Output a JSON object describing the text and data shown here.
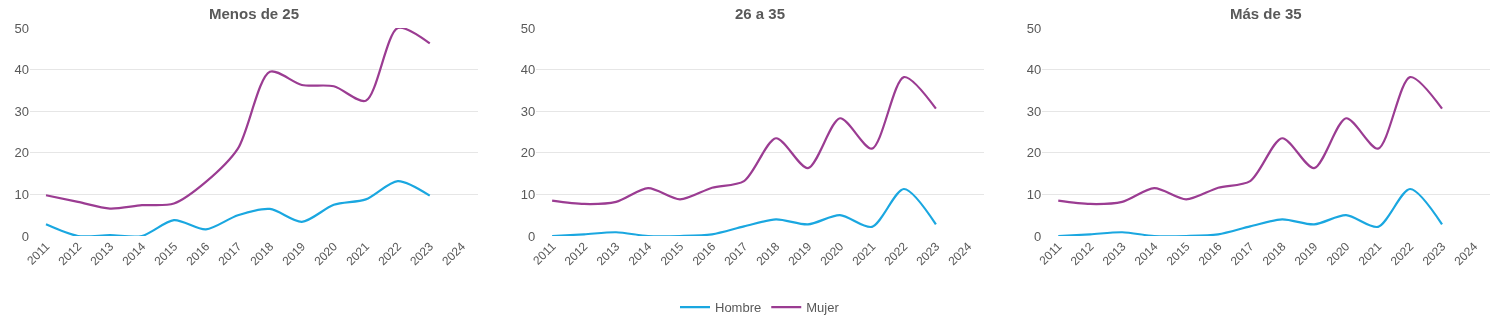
{
  "chart_data": [
    {
      "type": "line",
      "title": "Menos de 25",
      "categories": [
        "2011",
        "2012",
        "2013",
        "2014",
        "2015",
        "2016",
        "2017",
        "2018",
        "2019",
        "2020",
        "2021",
        "2022",
        "2023",
        "2024"
      ],
      "ylim": [
        0,
        50
      ],
      "yticks": [
        0,
        10,
        20,
        30,
        40,
        50
      ],
      "grid": "y",
      "legend": "bottom",
      "series": [
        {
          "name": "Hombre",
          "color": "#1aa7e0",
          "values": [
            2.8,
            0,
            0.2,
            0,
            3.8,
            1.6,
            5,
            6.5,
            3.4,
            7.5,
            8.8,
            13.2,
            9.7,
            null
          ]
        },
        {
          "name": "Mujer",
          "color": "#9b3c92",
          "values": [
            9.8,
            8.2,
            6.6,
            7.4,
            7.8,
            13,
            21,
            39.5,
            36.3,
            36,
            32.5,
            50,
            46.3,
            null
          ]
        }
      ]
    },
    {
      "type": "line",
      "title": "26 a 35",
      "categories": [
        "2011",
        "2012",
        "2013",
        "2014",
        "2015",
        "2016",
        "2017",
        "2018",
        "2019",
        "2020",
        "2021",
        "2022",
        "2023",
        "2024"
      ],
      "ylim": [
        0,
        50
      ],
      "yticks": [
        0,
        10,
        20,
        30,
        40,
        50
      ],
      "grid": "y",
      "series": [
        {
          "color": "#1aa7e0",
          "values": [
            0,
            0.4,
            0.9,
            0,
            0,
            0.4,
            2.3,
            4,
            2.8,
            5,
            2.2,
            11.3,
            2.8,
            null
          ]
        },
        {
          "color": "#9b3c92",
          "values": [
            8.5,
            7.7,
            8.2,
            11.5,
            8.8,
            11.6,
            13.2,
            23.5,
            16.3,
            28.3,
            21,
            38.2,
            30.6,
            null
          ]
        }
      ]
    },
    {
      "type": "line",
      "title": "Más de 35",
      "categories": [
        "2011",
        "2012",
        "2013",
        "2014",
        "2015",
        "2016",
        "2017",
        "2018",
        "2019",
        "2020",
        "2021",
        "2022",
        "2023",
        "2024"
      ],
      "ylim": [
        0,
        50
      ],
      "yticks": [
        0,
        10,
        20,
        30,
        40,
        50
      ],
      "grid": "y",
      "series": [
        {
          "color": "#1aa7e0",
          "values": [
            0,
            0.4,
            0.9,
            0,
            0,
            0.4,
            2.3,
            4,
            2.8,
            5,
            2.2,
            11.3,
            2.8,
            null
          ]
        },
        {
          "color": "#9b3c92",
          "values": [
            8.5,
            7.7,
            8.2,
            11.5,
            8.8,
            11.6,
            13.2,
            23.5,
            16.3,
            28.3,
            21,
            38.2,
            30.6,
            null
          ]
        }
      ]
    }
  ]
}
